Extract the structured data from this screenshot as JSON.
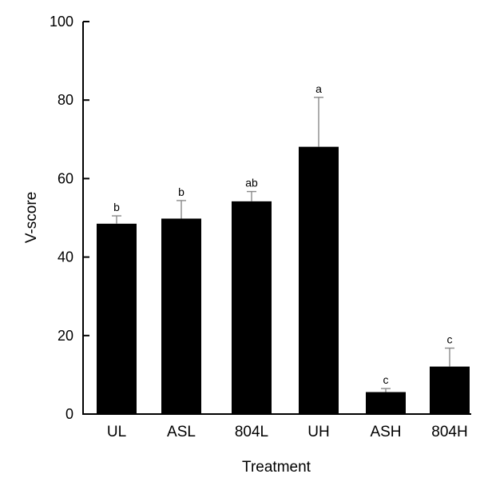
{
  "chart_data": {
    "type": "bar",
    "title": "",
    "xlabel": "Treatment",
    "ylabel": "V-score",
    "ylim": [
      0,
      100
    ],
    "yticks": [
      0,
      20,
      40,
      60,
      80,
      100
    ],
    "grid": false,
    "categories": [
      "UL",
      "ASL",
      "804L",
      "UH",
      "ASH",
      "804H"
    ],
    "values": [
      48.5,
      49.8,
      54.2,
      68.1,
      5.6,
      12.1
    ],
    "error_upper": [
      2.0,
      4.6,
      2.5,
      12.6,
      0.9,
      4.7
    ],
    "significance_labels": [
      "b",
      "b",
      "ab",
      "a",
      "c",
      "c"
    ],
    "bar_color": "#000000",
    "error_bar_color": "#8a8a8a"
  }
}
